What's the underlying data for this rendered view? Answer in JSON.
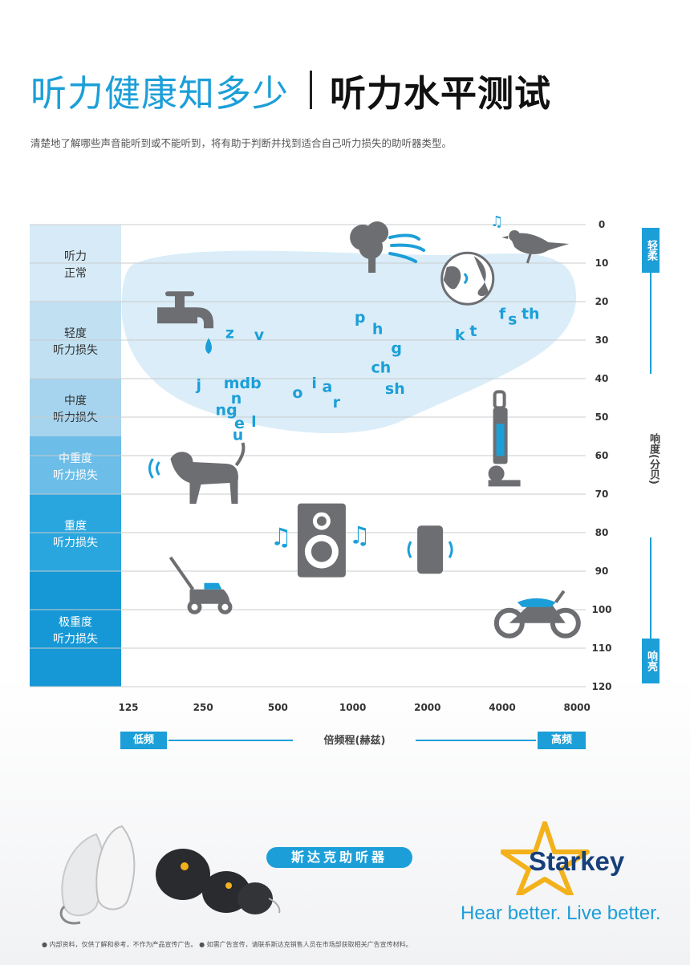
{
  "header": {
    "title_left": "听力健康知多少",
    "title_right": "听力水平测试",
    "subtitle": "清楚地了解哪些声音能听到或不能听到，将有助于判断并找到适合自己听力损失的助听器类型。"
  },
  "chart_data": {
    "type": "scatter",
    "x_axis": {
      "label": "倍频程(赫兹)",
      "scale": "log2",
      "ticks": [
        125,
        250,
        500,
        1000,
        2000,
        4000,
        8000
      ],
      "low_label": "低频",
      "high_label": "高频"
    },
    "y_axis": {
      "label": "响度(分贝)",
      "range": [
        0,
        120
      ],
      "inverted": true,
      "ticks": [
        0,
        10,
        20,
        30,
        40,
        50,
        60,
        70,
        80,
        90,
        100,
        110,
        120
      ],
      "quiet_label": "轻柔",
      "loud_label": "响亮"
    },
    "hearing_levels": [
      {
        "label_lines": [
          "听力",
          "正常"
        ],
        "from_db": 0,
        "to_db": 20,
        "color": "#d6ebf7"
      },
      {
        "label_lines": [
          "轻度",
          "听力损失"
        ],
        "from_db": 20,
        "to_db": 40,
        "color": "#c1e1f3"
      },
      {
        "label_lines": [
          "中度",
          "听力损失"
        ],
        "from_db": 40,
        "to_db": 55,
        "color": "#a6d4ee"
      },
      {
        "label_lines": [
          "中重度",
          "听力损失"
        ],
        "from_db": 55,
        "to_db": 70,
        "color": "#6cbde8"
      },
      {
        "label_lines": [
          "重度",
          "听力损失"
        ],
        "from_db": 70,
        "to_db": 90,
        "color": "#2aa6df"
      },
      {
        "label_lines": [
          "极重度",
          "听力损失"
        ],
        "from_db": 90,
        "to_db": 120,
        "color": "#1798d6"
      }
    ],
    "speech_sounds": [
      {
        "text": "z",
        "hz": 320,
        "db": 28
      },
      {
        "text": "v",
        "hz": 420,
        "db": 28.5
      },
      {
        "text": "j",
        "hz": 240,
        "db": 41.5
      },
      {
        "text": "mdb",
        "hz": 360,
        "db": 41
      },
      {
        "text": "n",
        "hz": 340,
        "db": 45
      },
      {
        "text": "ng",
        "hz": 310,
        "db": 48
      },
      {
        "text": "e",
        "hz": 350,
        "db": 51.5
      },
      {
        "text": "l",
        "hz": 400,
        "db": 51
      },
      {
        "text": "u",
        "hz": 345,
        "db": 54.5
      },
      {
        "text": "o",
        "hz": 600,
        "db": 43.5
      },
      {
        "text": "i",
        "hz": 700,
        "db": 41
      },
      {
        "text": "a",
        "hz": 790,
        "db": 42
      },
      {
        "text": "r",
        "hz": 860,
        "db": 46
      },
      {
        "text": "p",
        "hz": 1070,
        "db": 24
      },
      {
        "text": "h",
        "hz": 1260,
        "db": 27
      },
      {
        "text": "g",
        "hz": 1500,
        "db": 32
      },
      {
        "text": "ch",
        "hz": 1300,
        "db": 37
      },
      {
        "text": "sh",
        "hz": 1480,
        "db": 42.5
      },
      {
        "text": "k",
        "hz": 2700,
        "db": 28.5
      },
      {
        "text": "t",
        "hz": 3060,
        "db": 27.5
      },
      {
        "text": "f",
        "hz": 4000,
        "db": 23
      },
      {
        "text": "s",
        "hz": 4400,
        "db": 24.5
      },
      {
        "text": "th",
        "hz": 5200,
        "db": 23
      }
    ],
    "sound_icons": [
      {
        "icon": "tree-wind-icon",
        "hz": 1200,
        "db": 5
      },
      {
        "icon": "bird-icon",
        "hz": 5200,
        "db": 5
      },
      {
        "icon": "globe-ticking-icon",
        "hz": 2900,
        "db": 14
      },
      {
        "icon": "faucet-icon",
        "hz": 220,
        "db": 24
      },
      {
        "icon": "dog-icon",
        "hz": 245,
        "db": 65
      },
      {
        "icon": "vacuum-icon",
        "hz": 3900,
        "db": 58
      },
      {
        "icon": "speaker-icon",
        "hz": 750,
        "db": 82
      },
      {
        "icon": "phone-icon",
        "hz": 2050,
        "db": 84
      },
      {
        "icon": "lawnmower-icon",
        "hz": 245,
        "db": 96
      },
      {
        "icon": "motorbike-icon",
        "hz": 5500,
        "db": 101
      }
    ],
    "speech_banana_color": "#d6ebf7"
  },
  "brand": {
    "pill_text": "斯达克助听器",
    "name": "Starkey",
    "tagline": "Hear better. Live better.",
    "footnote": "● 内部资料，仅供了解和参考，不作为产品宣传广告。  ● 如需广告宣传，请联系斯达克销售人员在市场部获取相关广告宣传材料。"
  },
  "colors": {
    "accent": "#1c9fd8",
    "icon_gray": "#6d6e71",
    "brand_navy": "#17407a",
    "star_yellow": "#f3b21c"
  }
}
